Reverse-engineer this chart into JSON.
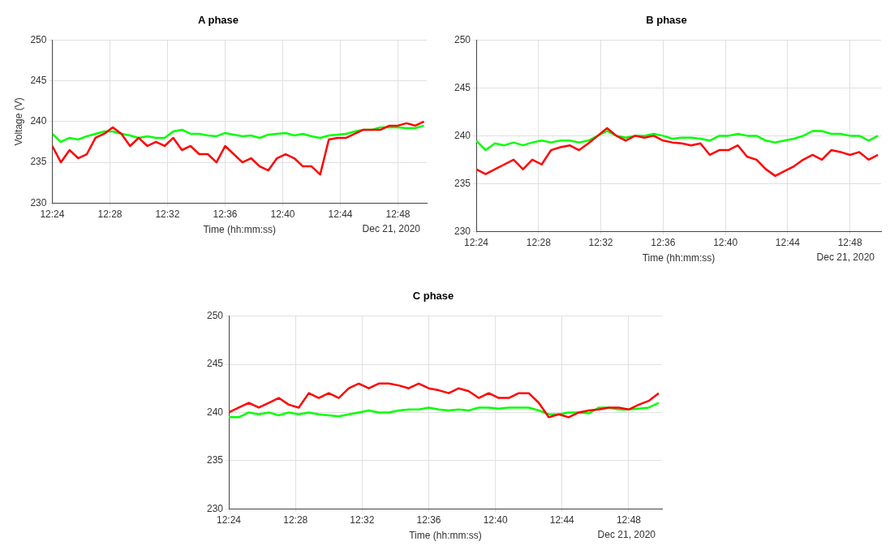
{
  "chart_data": [
    {
      "type": "line",
      "title": "A phase",
      "xlabel": "Time (hh:mm:ss)",
      "ylabel": "Voltage (V)",
      "annotations": [
        "Dec 21, 2020"
      ],
      "grid": true,
      "line_style": "solid",
      "marker": "none",
      "x": [
        12.4,
        12.41,
        12.42,
        12.43,
        12.44,
        12.45,
        12.46,
        12.47,
        12.48,
        12.49,
        12.5,
        12.51,
        12.52,
        12.53,
        12.54,
        12.55,
        12.56,
        12.57,
        12.58,
        12.59,
        12.6,
        12.61,
        12.62,
        12.63,
        12.64,
        12.65,
        12.66,
        12.67,
        12.68,
        12.69,
        12.7,
        12.71,
        12.72,
        12.73,
        12.74,
        12.75,
        12.76,
        12.77,
        12.78,
        12.79,
        12.8,
        12.81,
        12.82,
        12.83
      ],
      "xlim": [
        12.4,
        12.8333
      ],
      "xticks": [
        {
          "value": 12.4,
          "label": "12:24"
        },
        {
          "value": 12.4667,
          "label": "12:28"
        },
        {
          "value": 12.5333,
          "label": "12:32"
        },
        {
          "value": 12.6,
          "label": "12:36"
        },
        {
          "value": 12.6667,
          "label": "12:40"
        },
        {
          "value": 12.7333,
          "label": "12:44"
        },
        {
          "value": 12.8,
          "label": "12:48"
        }
      ],
      "ylim": [
        230,
        250
      ],
      "yticks": [
        230,
        235,
        240,
        245,
        250
      ],
      "series": [
        {
          "color": "#ff0000",
          "values": [
            237,
            235,
            236.5,
            235.5,
            236,
            238,
            238.5,
            239.3,
            238.5,
            237,
            238,
            237,
            237.5,
            237,
            238,
            236.5,
            237,
            236,
            236,
            235,
            237,
            236,
            235,
            235.5,
            234.5,
            234,
            235.5,
            236,
            235.5,
            234.5,
            234.5,
            233.5,
            237.8,
            238,
            238,
            238.5,
            239,
            239,
            239,
            239.5,
            239.5,
            239.8,
            239.5,
            240
          ]
        },
        {
          "color": "#00ff00",
          "values": [
            238.5,
            237.5,
            238,
            237.8,
            238.2,
            238.5,
            238.8,
            238.8,
            238.5,
            238.3,
            238,
            238.2,
            238,
            238,
            238.8,
            239,
            238.5,
            238.5,
            238.3,
            238.2,
            238.6,
            238.4,
            238.2,
            238.3,
            238,
            238.4,
            238.5,
            238.6,
            238.3,
            238.5,
            238.2,
            238,
            238.3,
            238.4,
            238.5,
            238.8,
            239,
            239,
            239.3,
            239.3,
            239.3,
            239.2,
            239.2,
            239.5
          ]
        }
      ]
    },
    {
      "type": "line",
      "title": "B phase",
      "xlabel": "Time (hh:mm:ss)",
      "annotations": [
        "Dec 21, 2020"
      ],
      "grid": true,
      "line_style": "solid",
      "marker": "none",
      "x": [
        12.4,
        12.41,
        12.42,
        12.43,
        12.44,
        12.45,
        12.46,
        12.47,
        12.48,
        12.49,
        12.5,
        12.51,
        12.52,
        12.53,
        12.54,
        12.55,
        12.56,
        12.57,
        12.58,
        12.59,
        12.6,
        12.61,
        12.62,
        12.63,
        12.64,
        12.65,
        12.66,
        12.67,
        12.68,
        12.69,
        12.7,
        12.71,
        12.72,
        12.73,
        12.74,
        12.75,
        12.76,
        12.77,
        12.78,
        12.79,
        12.8,
        12.81,
        12.82,
        12.83
      ],
      "xlim": [
        12.4,
        12.8333
      ],
      "xticks": [
        {
          "value": 12.4,
          "label": "12:24"
        },
        {
          "value": 12.4667,
          "label": "12:28"
        },
        {
          "value": 12.5333,
          "label": "12:32"
        },
        {
          "value": 12.6,
          "label": "12:36"
        },
        {
          "value": 12.6667,
          "label": "12:40"
        },
        {
          "value": 12.7333,
          "label": "12:44"
        },
        {
          "value": 12.8,
          "label": "12:48"
        }
      ],
      "ylim": [
        230,
        250
      ],
      "yticks": [
        230,
        235,
        240,
        245,
        250
      ],
      "series": [
        {
          "color": "#ff0000",
          "values": [
            236.5,
            236,
            236.5,
            237,
            237.5,
            236.5,
            237.5,
            237,
            238.5,
            238.8,
            239,
            238.5,
            239.2,
            240,
            240.8,
            240,
            239.5,
            240,
            239.8,
            240,
            239.5,
            239.3,
            239.2,
            239,
            239.2,
            238,
            238.5,
            238.5,
            239,
            237.8,
            237.5,
            236.5,
            235.8,
            236.3,
            236.8,
            237.5,
            238,
            237.5,
            238.5,
            238.3,
            238,
            238.3,
            237.5,
            238
          ]
        },
        {
          "color": "#00ff00",
          "values": [
            239.5,
            238.5,
            239.2,
            239,
            239.3,
            239,
            239.3,
            239.5,
            239.3,
            239.5,
            239.5,
            239.3,
            239.5,
            240,
            240.5,
            240,
            239.8,
            240,
            240,
            240.2,
            240,
            239.7,
            239.8,
            239.8,
            239.7,
            239.5,
            240,
            240,
            240.2,
            240,
            240,
            239.5,
            239.3,
            239.5,
            239.7,
            240,
            240.5,
            240.5,
            240.2,
            240.2,
            240,
            240,
            239.5,
            240
          ]
        }
      ]
    },
    {
      "type": "line",
      "title": "C phase",
      "xlabel": "Time (hh:mm:ss)",
      "annotations": [
        "Dec 21, 2020"
      ],
      "grid": true,
      "line_style": "solid",
      "marker": "none",
      "x": [
        12.4,
        12.41,
        12.42,
        12.43,
        12.44,
        12.45,
        12.46,
        12.47,
        12.48,
        12.49,
        12.5,
        12.51,
        12.52,
        12.53,
        12.54,
        12.55,
        12.56,
        12.57,
        12.58,
        12.59,
        12.6,
        12.61,
        12.62,
        12.63,
        12.64,
        12.65,
        12.66,
        12.67,
        12.68,
        12.69,
        12.7,
        12.71,
        12.72,
        12.73,
        12.74,
        12.75,
        12.76,
        12.77,
        12.78,
        12.79,
        12.8,
        12.81,
        12.82,
        12.83
      ],
      "xlim": [
        12.4,
        12.8333
      ],
      "xticks": [
        {
          "value": 12.4,
          "label": "12:24"
        },
        {
          "value": 12.4667,
          "label": "12:28"
        },
        {
          "value": 12.5333,
          "label": "12:32"
        },
        {
          "value": 12.6,
          "label": "12:36"
        },
        {
          "value": 12.6667,
          "label": "12:40"
        },
        {
          "value": 12.7333,
          "label": "12:44"
        },
        {
          "value": 12.8,
          "label": "12:48"
        }
      ],
      "ylim": [
        230,
        250
      ],
      "yticks": [
        230,
        235,
        240,
        245,
        250
      ],
      "series": [
        {
          "color": "#ff0000",
          "values": [
            240,
            240.5,
            241,
            240.5,
            241,
            241.5,
            240.8,
            240.5,
            242,
            241.5,
            242,
            241.5,
            242.5,
            243,
            242.5,
            243,
            243,
            242.8,
            242.5,
            243,
            242.5,
            242.3,
            242,
            242.5,
            242.2,
            241.5,
            242,
            241.5,
            241.5,
            242,
            242,
            241,
            239.5,
            239.8,
            239.5,
            240,
            240.2,
            240.3,
            240.5,
            240.5,
            240.3,
            240.8,
            241.2,
            242
          ]
        },
        {
          "color": "#00ff00",
          "values": [
            239.5,
            239.5,
            240,
            239.8,
            240,
            239.7,
            240,
            239.8,
            240,
            239.8,
            239.7,
            239.6,
            239.8,
            240,
            240.2,
            240,
            240,
            240.2,
            240.3,
            240.3,
            240.5,
            240.3,
            240.2,
            240.3,
            240.2,
            240.5,
            240.5,
            240.4,
            240.5,
            240.5,
            240.5,
            240.2,
            239.8,
            239.8,
            240,
            240,
            239.9,
            240.5,
            240.5,
            240.3,
            240.3,
            240.4,
            240.5,
            241
          ]
        }
      ]
    }
  ]
}
